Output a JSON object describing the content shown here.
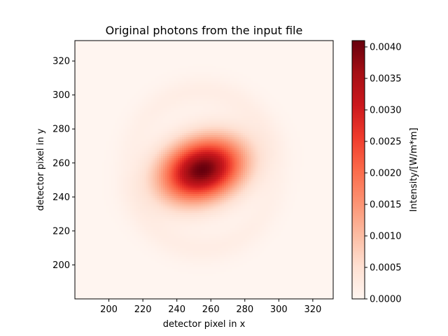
{
  "chart_data": {
    "type": "heatmap",
    "title": "Original photons from the input file",
    "xlabel": "detector pixel in x",
    "ylabel": "detector pixel in y",
    "colorbar_label": "Intensity/[W/m*m]",
    "colormap": "Reds",
    "xlim": [
      180,
      332
    ],
    "ylim": [
      180,
      332
    ],
    "x_ticks": [
      200,
      220,
      240,
      260,
      280,
      300,
      320
    ],
    "y_ticks": [
      200,
      220,
      240,
      260,
      280,
      300,
      320
    ],
    "color_range": [
      0,
      0.0041
    ],
    "colorbar_ticks": [
      "0.0000",
      "0.0005",
      "0.0010",
      "0.0015",
      "0.0020",
      "0.0025",
      "0.0030",
      "0.0035",
      "0.0040"
    ],
    "colorbar_tick_values": [
      0,
      0.0005,
      0.001,
      0.0015,
      0.002,
      0.0025,
      0.003,
      0.0035,
      0.004
    ],
    "peak": {
      "x": 255,
      "y": 256,
      "value": 0.0041
    },
    "colors": {
      "low": "#fff5f0",
      "mid": "#fb6a4a",
      "high": "#67000d"
    }
  }
}
